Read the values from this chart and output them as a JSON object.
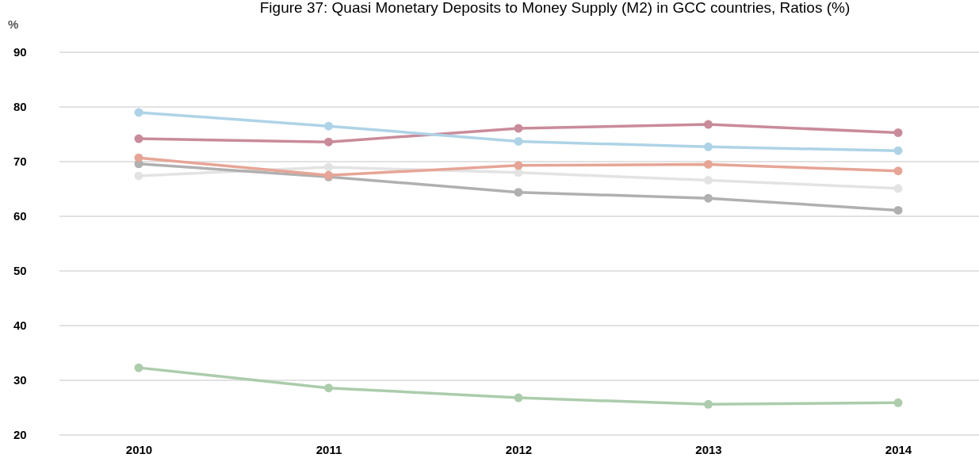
{
  "chart_data": {
    "type": "line",
    "title": "Figure 37: Quasi Monetary Deposits to Money Supply (M2) in GCC countries, Ratios (%)",
    "ylabel": "%",
    "categories": [
      "2010",
      "2011",
      "2012",
      "2013",
      "2014"
    ],
    "series": [
      {
        "color": "#aed3e6",
        "values": [
          79.0,
          76.5,
          73.7,
          72.7,
          72.0
        ]
      },
      {
        "color": "#c98b9a",
        "values": [
          74.2,
          73.6,
          76.1,
          76.8,
          75.3
        ]
      },
      {
        "color": "#e6a596",
        "values": [
          70.7,
          67.5,
          69.3,
          69.5,
          68.3
        ]
      },
      {
        "color": "#b0b0b0",
        "values": [
          69.6,
          67.2,
          64.4,
          63.3,
          61.1
        ]
      },
      {
        "color": "#e3e3e3",
        "values": [
          67.4,
          69.0,
          68.0,
          66.6,
          65.1
        ]
      },
      {
        "color": "#acccac",
        "values": [
          32.3,
          28.6,
          26.8,
          25.6,
          25.9
        ]
      }
    ],
    "ylim": [
      20,
      90
    ],
    "yticks": [
      20,
      30,
      40,
      50,
      60,
      70,
      80,
      90
    ],
    "grid": "y",
    "marker": "circle",
    "line_style": "solid"
  }
}
